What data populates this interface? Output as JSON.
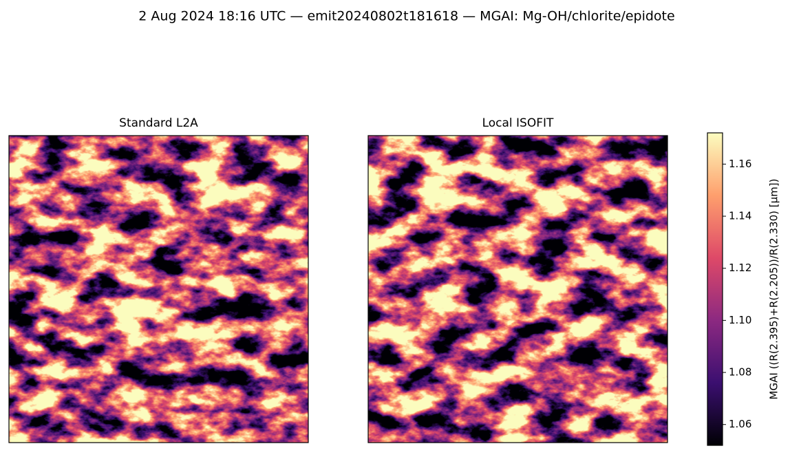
{
  "chart_data": {
    "type": "image",
    "title": "2 Aug 2024 18:16 UTC — emit20240802t181618 — MGAI: Mg-OH/chlorite/epidote",
    "panels": [
      {
        "title": "Standard L2A"
      },
      {
        "title": "Local ISOFIT"
      }
    ],
    "colorbar": {
      "label": "MGAI  ((R(2.395)+R(2.205))/R(2.330)  [µm])",
      "colormap": [
        "#000004",
        "#3b0f70",
        "#8c2981",
        "#de4968",
        "#fe9f6d",
        "#fcfdbf"
      ],
      "ylim": [
        1.052,
        1.172
      ],
      "yticks": [
        {
          "value": 1.06,
          "label": "1.06"
        },
        {
          "value": 1.08,
          "label": "1.08"
        },
        {
          "value": 1.1,
          "label": "1.10"
        },
        {
          "value": 1.12,
          "label": "1.12"
        },
        {
          "value": 1.14,
          "label": "1.14"
        },
        {
          "value": 1.16,
          "label": "1.16"
        }
      ]
    }
  }
}
